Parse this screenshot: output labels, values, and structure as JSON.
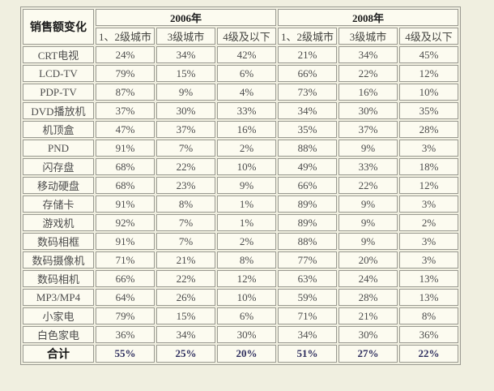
{
  "table": {
    "corner_label": "销售额变化",
    "year_groups": [
      "2006年",
      "2008年"
    ],
    "sub_headers": [
      "1、2级城市",
      "3级城市",
      "4级及以下",
      "1、2级城市",
      "3级城市",
      "4级及以下"
    ],
    "rows": [
      {
        "label": "CRT电视",
        "values": [
          "24%",
          "34%",
          "42%",
          "21%",
          "34%",
          "45%"
        ],
        "total": false
      },
      {
        "label": "LCD-TV",
        "values": [
          "79%",
          "15%",
          "6%",
          "66%",
          "22%",
          "12%"
        ],
        "total": false
      },
      {
        "label": "PDP-TV",
        "values": [
          "87%",
          "9%",
          "4%",
          "73%",
          "16%",
          "10%"
        ],
        "total": false
      },
      {
        "label": "DVD播放机",
        "values": [
          "37%",
          "30%",
          "33%",
          "34%",
          "30%",
          "35%"
        ],
        "total": false
      },
      {
        "label": "机顶盒",
        "values": [
          "47%",
          "37%",
          "16%",
          "35%",
          "37%",
          "28%"
        ],
        "total": false
      },
      {
        "label": "PND",
        "values": [
          "91%",
          "7%",
          "2%",
          "88%",
          "9%",
          "3%"
        ],
        "total": false
      },
      {
        "label": "闪存盘",
        "values": [
          "68%",
          "22%",
          "10%",
          "49%",
          "33%",
          "18%"
        ],
        "total": false
      },
      {
        "label": "移动硬盘",
        "values": [
          "68%",
          "23%",
          "9%",
          "66%",
          "22%",
          "12%"
        ],
        "total": false
      },
      {
        "label": "存储卡",
        "values": [
          "91%",
          "8%",
          "1%",
          "89%",
          "9%",
          "3%"
        ],
        "total": false
      },
      {
        "label": "游戏机",
        "values": [
          "92%",
          "7%",
          "1%",
          "89%",
          "9%",
          "2%"
        ],
        "total": false
      },
      {
        "label": "数码相框",
        "values": [
          "91%",
          "7%",
          "2%",
          "88%",
          "9%",
          "3%"
        ],
        "total": false
      },
      {
        "label": "数码摄像机",
        "values": [
          "71%",
          "21%",
          "8%",
          "77%",
          "20%",
          "3%"
        ],
        "total": false
      },
      {
        "label": "数码相机",
        "values": [
          "66%",
          "22%",
          "12%",
          "63%",
          "24%",
          "13%"
        ],
        "total": false
      },
      {
        "label": "MP3/MP4",
        "values": [
          "64%",
          "26%",
          "10%",
          "59%",
          "28%",
          "13%"
        ],
        "total": false
      },
      {
        "label": "小家电",
        "values": [
          "79%",
          "15%",
          "6%",
          "71%",
          "21%",
          "8%"
        ],
        "total": false
      },
      {
        "label": "白色家电",
        "values": [
          "36%",
          "34%",
          "30%",
          "34%",
          "30%",
          "36%"
        ],
        "total": false
      },
      {
        "label": "合计",
        "values": [
          "55%",
          "25%",
          "20%",
          "51%",
          "27%",
          "22%"
        ],
        "total": true
      }
    ]
  },
  "chart_data": {
    "type": "table",
    "title": "销售额变化",
    "column_groups": [
      "2006年",
      "2008年"
    ],
    "columns": [
      "2006年 1、2级城市",
      "2006年 3级城市",
      "2006年 4级及以下",
      "2008年 1、2级城市",
      "2008年 3级城市",
      "2008年 4级及以下"
    ],
    "row_labels": [
      "CRT电视",
      "LCD-TV",
      "PDP-TV",
      "DVD播放机",
      "机顶盒",
      "PND",
      "闪存盘",
      "移动硬盘",
      "存储卡",
      "游戏机",
      "数码相框",
      "数码摄像机",
      "数码相机",
      "MP3/MP4",
      "小家电",
      "白色家电",
      "合计"
    ],
    "values_percent": [
      [
        24,
        34,
        42,
        21,
        34,
        45
      ],
      [
        79,
        15,
        6,
        66,
        22,
        12
      ],
      [
        87,
        9,
        4,
        73,
        16,
        10
      ],
      [
        37,
        30,
        33,
        34,
        30,
        35
      ],
      [
        47,
        37,
        16,
        35,
        37,
        28
      ],
      [
        91,
        7,
        2,
        88,
        9,
        3
      ],
      [
        68,
        22,
        10,
        49,
        33,
        18
      ],
      [
        68,
        23,
        9,
        66,
        22,
        12
      ],
      [
        91,
        8,
        1,
        89,
        9,
        3
      ],
      [
        92,
        7,
        1,
        89,
        9,
        2
      ],
      [
        91,
        7,
        2,
        88,
        9,
        3
      ],
      [
        71,
        21,
        8,
        77,
        20,
        3
      ],
      [
        66,
        22,
        12,
        63,
        24,
        13
      ],
      [
        64,
        26,
        10,
        59,
        28,
        13
      ],
      [
        79,
        15,
        6,
        71,
        21,
        8
      ],
      [
        36,
        34,
        30,
        34,
        30,
        36
      ],
      [
        55,
        25,
        20,
        51,
        27,
        22
      ]
    ]
  },
  "colors": {
    "page_background": "#f0efe0",
    "cell_background": "#fcfbf0",
    "border": "#9a9a91",
    "text_normal": "#4d4d4d",
    "text_header": "#1c1c1c",
    "text_total_values": "#2e2e5e"
  }
}
